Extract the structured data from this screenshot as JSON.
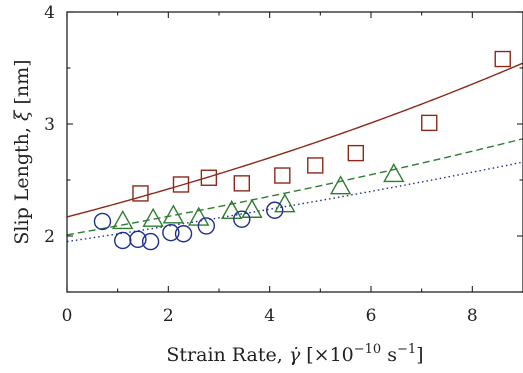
{
  "chart_data": {
    "type": "scatter",
    "xlabel": "Strain Rate, γ̇ [×10⁻¹⁰ s⁻¹]",
    "ylabel": "Slip Length, ξ [nm]",
    "xlim": [
      0,
      9
    ],
    "ylim": [
      1.5,
      4
    ],
    "xticks": [
      "0",
      "2",
      "4",
      "6",
      "8"
    ],
    "yticks": [
      "2",
      "3",
      "4"
    ],
    "grid": false,
    "series": [
      {
        "marker": "square",
        "color": "#8b2a1a",
        "points": [
          [
            1.45,
            2.38
          ],
          [
            2.25,
            2.46
          ],
          [
            2.8,
            2.52
          ],
          [
            3.45,
            2.47
          ],
          [
            4.25,
            2.54
          ],
          [
            4.9,
            2.63
          ],
          [
            5.7,
            2.74
          ],
          [
            7.15,
            3.01
          ],
          [
            8.6,
            3.58
          ]
        ],
        "fit": {
          "style": "solid",
          "a": 2.17,
          "b": 0.0545
        }
      },
      {
        "marker": "triangle",
        "color": "#2e7d32",
        "points": [
          [
            1.1,
            2.13
          ],
          [
            1.7,
            2.15
          ],
          [
            2.1,
            2.18
          ],
          [
            2.6,
            2.16
          ],
          [
            3.25,
            2.22
          ],
          [
            3.65,
            2.23
          ],
          [
            4.3,
            2.28
          ],
          [
            5.4,
            2.44
          ],
          [
            6.45,
            2.55
          ]
        ],
        "fit": {
          "style": "dashed",
          "a": 2.01,
          "b": 0.0395
        }
      },
      {
        "marker": "circle",
        "color": "#1f2f8f",
        "points": [
          [
            0.7,
            2.13
          ],
          [
            1.1,
            1.96
          ],
          [
            1.4,
            1.97
          ],
          [
            1.65,
            1.95
          ],
          [
            2.05,
            2.03
          ],
          [
            2.3,
            2.02
          ],
          [
            2.75,
            2.09
          ],
          [
            3.45,
            2.15
          ],
          [
            4.1,
            2.23
          ]
        ],
        "fit": {
          "style": "dotted",
          "a": 1.95,
          "b": 0.0345
        }
      }
    ]
  }
}
